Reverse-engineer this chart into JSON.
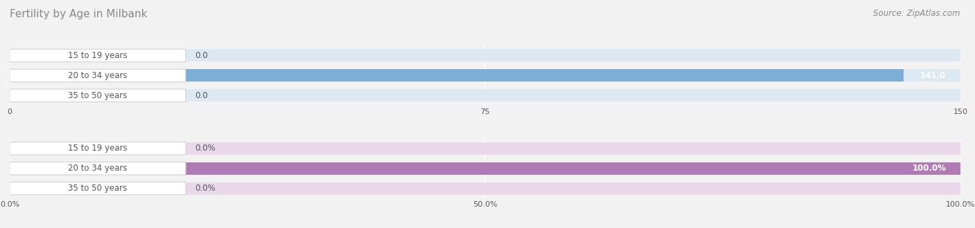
{
  "title": "Fertility by Age in Milbank",
  "source": "Source: ZipAtlas.com",
  "background_color": "#f2f2f2",
  "top_chart": {
    "categories": [
      "15 to 19 years",
      "20 to 34 years",
      "35 to 50 years"
    ],
    "values": [
      0.0,
      141.0,
      0.0
    ],
    "bar_color": "#7dafd6",
    "bar_bg_color": "#dce8f2",
    "label_pill_color": "#b8d0e8",
    "xlim": [
      0,
      150
    ],
    "xticks": [
      0.0,
      75.0,
      150.0
    ],
    "value_labels": [
      "0.0",
      "141.0",
      "0.0"
    ]
  },
  "bottom_chart": {
    "categories": [
      "15 to 19 years",
      "20 to 34 years",
      "35 to 50 years"
    ],
    "values": [
      0.0,
      100.0,
      0.0
    ],
    "bar_color": "#b07ab5",
    "bar_bg_color": "#e8d8ea",
    "label_pill_color": "#cbaed0",
    "xlim": [
      0,
      100
    ],
    "xticks": [
      0.0,
      50.0,
      100.0
    ],
    "xtick_labels": [
      "0.0%",
      "50.0%",
      "100.0%"
    ],
    "value_labels": [
      "0.0%",
      "100.0%",
      "0.0%"
    ]
  },
  "label_color": "#555555",
  "label_fontsize": 8.5,
  "value_fontsize": 8.5,
  "title_fontsize": 11,
  "source_fontsize": 8.5
}
